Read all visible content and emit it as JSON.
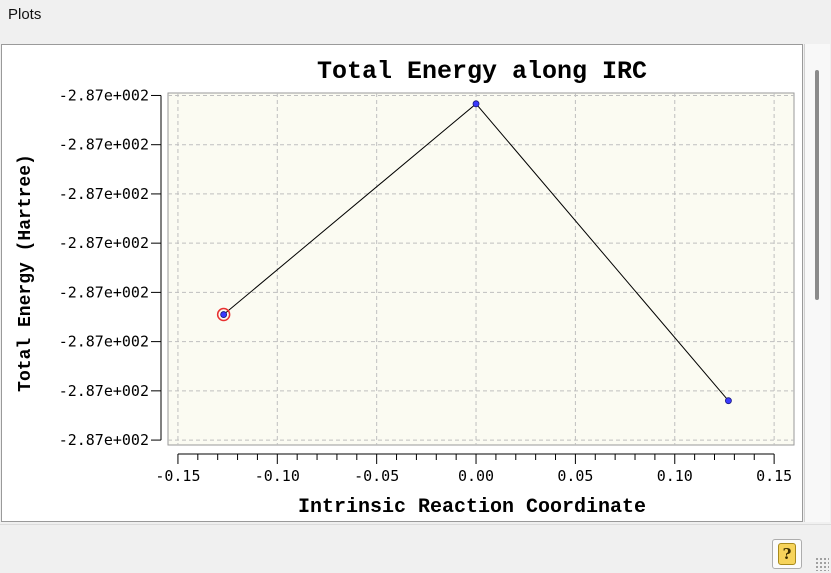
{
  "window": {
    "title": "Plots"
  },
  "chart_data": {
    "type": "line",
    "title": "Total Energy along IRC",
    "xlabel": "Intrinsic Reaction Coordinate",
    "ylabel": "Total Energy (Hartree)",
    "xlim": [
      -0.155,
      0.16
    ],
    "xticks": [
      -0.15,
      -0.1,
      -0.05,
      0.0,
      0.05,
      0.1,
      0.15
    ],
    "xtick_labels": [
      "-0.15",
      "-0.10",
      "-0.05",
      "0.00",
      "0.05",
      "0.10",
      "0.15"
    ],
    "ytick_labels": [
      "-2.87e+002",
      "-2.87e+002",
      "-2.87e+002",
      "-2.87e+002",
      "-2.87e+002",
      "-2.87e+002",
      "-2.87e+002",
      "-2.87e+002"
    ],
    "ytick_positions": [
      1,
      2,
      3,
      4,
      5,
      6,
      7,
      8
    ],
    "ylim_index": [
      0.95,
      8.1
    ],
    "x": [
      -0.127,
      0.0,
      0.127
    ],
    "y_index": [
      5.45,
      1.17,
      7.2
    ],
    "highlighted_point": 0,
    "grid": true,
    "colors": {
      "plot_background": "#fbfbf2",
      "line": "#000000",
      "marker": "#3a3aff",
      "highlight": "#e83030",
      "grid": "#bfbfbf"
    }
  },
  "footer": {
    "help_icon": "help-book-icon",
    "help_glyph": "?"
  }
}
